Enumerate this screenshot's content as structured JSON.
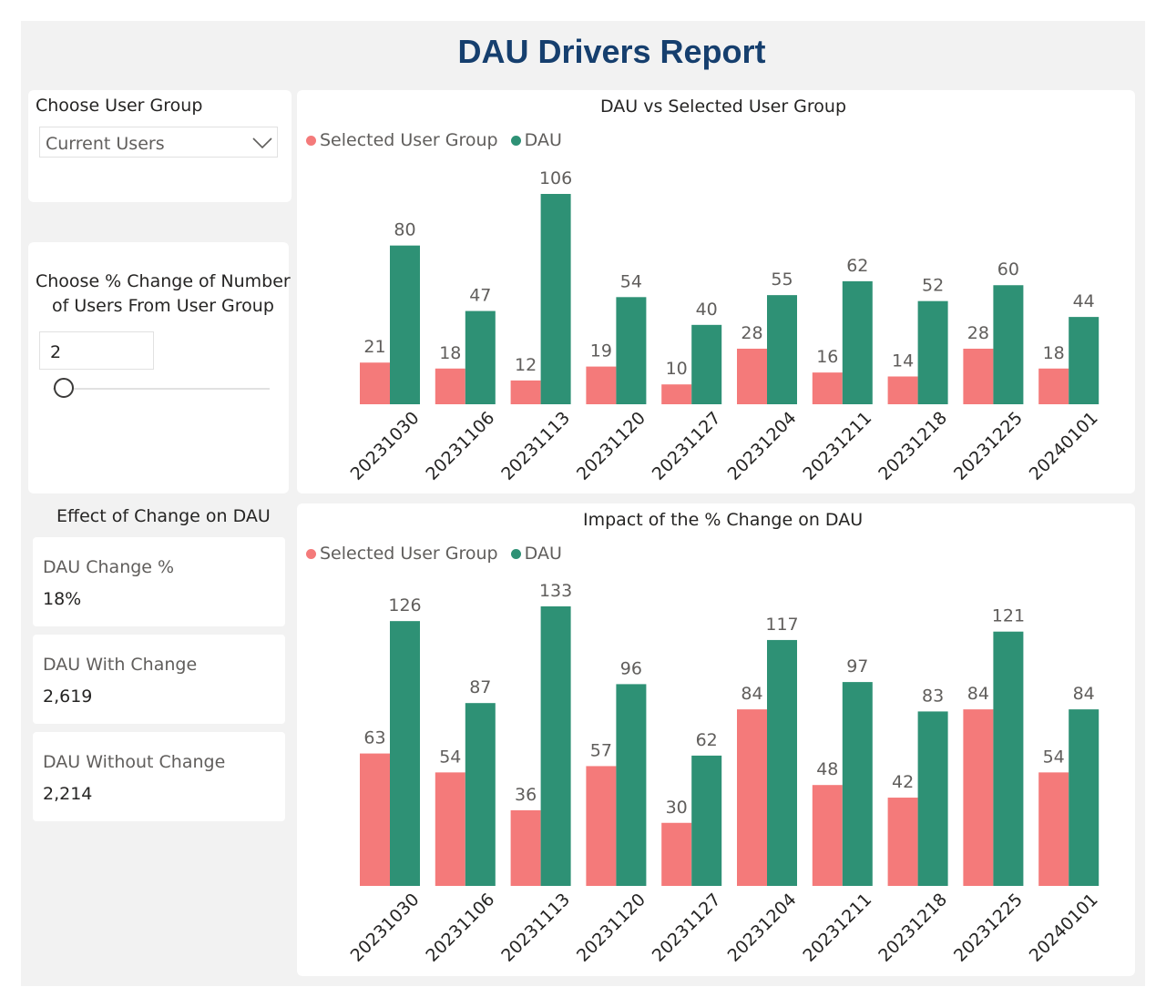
{
  "report": {
    "title": "DAU Drivers Report"
  },
  "colors": {
    "selected": "#f47a7a",
    "dau": "#2e9175",
    "title": "#163f6e"
  },
  "filters": {
    "user_group_label": "Choose User Group",
    "user_group_value": "Current Users",
    "pct_label_line1": "Choose % Change of Number",
    "pct_label_line2": "of Users From User Group",
    "pct_value": "2",
    "pct_slider_fraction": 0.05
  },
  "effect": {
    "title": "Effect of Change on DAU",
    "cards": [
      {
        "label": "DAU Change %",
        "value": "18%"
      },
      {
        "label": "DAU With Change",
        "value": "2,619"
      },
      {
        "label": "DAU Without Change",
        "value": "2,214"
      }
    ]
  },
  "chart_data": [
    {
      "type": "bar",
      "title": "DAU vs Selected User Group",
      "categories": [
        "20231030",
        "20231106",
        "20231113",
        "20231120",
        "20231127",
        "20231204",
        "20231211",
        "20231218",
        "20231225",
        "20240101"
      ],
      "series": [
        {
          "name": "Selected User Group",
          "values": [
            21,
            18,
            12,
            19,
            10,
            28,
            16,
            14,
            28,
            18
          ]
        },
        {
          "name": "DAU",
          "values": [
            80,
            47,
            106,
            54,
            40,
            55,
            62,
            52,
            60,
            44
          ]
        }
      ],
      "xlabel": "",
      "ylabel": "",
      "ylim": [
        0,
        106
      ],
      "legend": "top-left"
    },
    {
      "type": "bar",
      "title": "Impact of the % Change on DAU",
      "categories": [
        "20231030",
        "20231106",
        "20231113",
        "20231120",
        "20231127",
        "20231204",
        "20231211",
        "20231218",
        "20231225",
        "20240101"
      ],
      "series": [
        {
          "name": "Selected User Group",
          "values": [
            63,
            54,
            36,
            57,
            30,
            84,
            48,
            42,
            84,
            54
          ]
        },
        {
          "name": "DAU",
          "values": [
            126,
            87,
            133,
            96,
            62,
            117,
            97,
            83,
            121,
            84
          ]
        }
      ],
      "xlabel": "",
      "ylabel": "",
      "ylim": [
        0,
        133
      ],
      "legend": "top-left"
    }
  ]
}
